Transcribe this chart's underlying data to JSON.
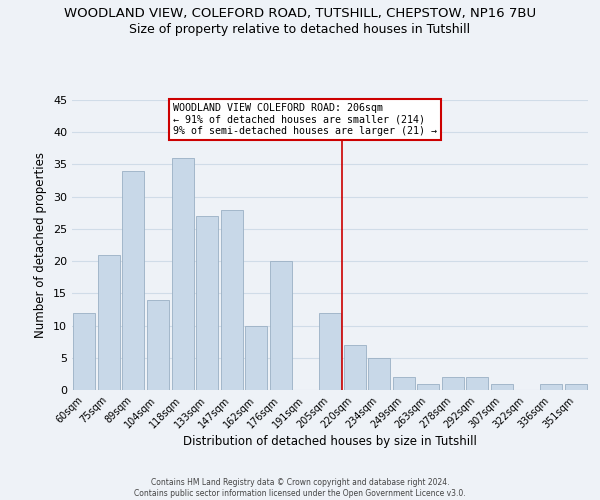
{
  "title": "WOODLAND VIEW, COLEFORD ROAD, TUTSHILL, CHEPSTOW, NP16 7BU",
  "subtitle": "Size of property relative to detached houses in Tutshill",
  "xlabel": "Distribution of detached houses by size in Tutshill",
  "ylabel": "Number of detached properties",
  "footer_line1": "Contains HM Land Registry data © Crown copyright and database right 2024.",
  "footer_line2": "Contains public sector information licensed under the Open Government Licence v3.0.",
  "bin_labels": [
    "60sqm",
    "75sqm",
    "89sqm",
    "104sqm",
    "118sqm",
    "133sqm",
    "147sqm",
    "162sqm",
    "176sqm",
    "191sqm",
    "205sqm",
    "220sqm",
    "234sqm",
    "249sqm",
    "263sqm",
    "278sqm",
    "292sqm",
    "307sqm",
    "322sqm",
    "336sqm",
    "351sqm"
  ],
  "bar_heights": [
    12,
    21,
    34,
    14,
    36,
    27,
    28,
    10,
    20,
    0,
    12,
    7,
    5,
    2,
    1,
    2,
    2,
    1,
    0,
    1,
    1
  ],
  "bar_color": "#c8d8e8",
  "bar_edgecolor": "#9ab0c4",
  "annotation_title": "WOODLAND VIEW COLEFORD ROAD: 206sqm",
  "annotation_line1": "← 91% of detached houses are smaller (214)",
  "annotation_line2": "9% of semi-detached houses are larger (21) →",
  "annotation_box_edgecolor": "#cc0000",
  "vline_color": "#cc0000",
  "ylim": [
    0,
    45
  ],
  "background_color": "#eef2f7",
  "grid_color": "#d0dce8",
  "title_fontsize": 9.5,
  "subtitle_fontsize": 9.0
}
